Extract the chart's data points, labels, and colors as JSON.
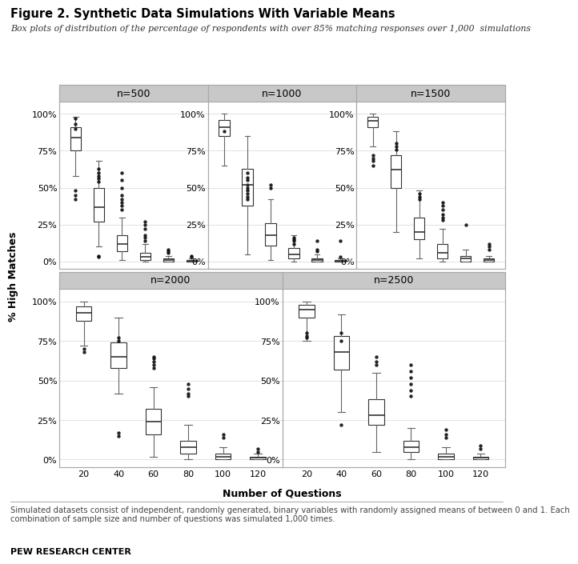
{
  "title": "Figure 2. Synthetic Data Simulations With Variable Means",
  "subtitle": "Box plots of distribution of the percentage of respondents with over 85% matching responses over 1,000  simulations",
  "footnote": "Simulated datasets consist of independent, randomly generated, binary variables with randomly assigned means of between 0 and 1. Each\ncombination of sample size and number of questions was simulated 1,000 times.",
  "footer_label": "PEW RESEARCH CENTER",
  "ylabel": "% High Matches",
  "xlabel": "Number of Questions",
  "panels": [
    "n=500",
    "n=1000",
    "n=1500",
    "n=2000",
    "n=2500"
  ],
  "questions": [
    20,
    40,
    60,
    80,
    100,
    120
  ],
  "yticks": [
    0,
    25,
    50,
    75,
    100
  ],
  "ytick_labels": [
    "0%",
    "25%",
    "50%",
    "75%",
    "100%"
  ],
  "box_data": {
    "n=500": {
      "20": {
        "q1": 75,
        "median": 84,
        "q3": 91,
        "whislo": 58,
        "whishi": 98,
        "fliers": [
          97,
          93,
          90,
          48,
          45,
          42
        ]
      },
      "40": {
        "q1": 27,
        "median": 37,
        "q3": 50,
        "whislo": 10,
        "whishi": 68,
        "fliers": [
          4,
          3,
          63,
          60,
          58,
          56,
          54
        ]
      },
      "60": {
        "q1": 7,
        "median": 12,
        "q3": 18,
        "whislo": 1,
        "whishi": 30,
        "fliers": [
          35,
          38,
          40,
          42,
          45,
          50,
          55,
          60
        ]
      },
      "80": {
        "q1": 1,
        "median": 3,
        "q3": 6,
        "whislo": 0,
        "whishi": 12,
        "fliers": [
          14,
          16,
          18,
          22,
          25,
          27
        ]
      },
      "100": {
        "q1": 0,
        "median": 1,
        "q3": 2,
        "whislo": 0,
        "whishi": 4,
        "fliers": [
          6,
          7,
          8
        ]
      },
      "120": {
        "q1": 0,
        "median": 0,
        "q3": 1,
        "whislo": 0,
        "whishi": 2,
        "fliers": [
          3,
          4
        ]
      }
    },
    "n=1000": {
      "20": {
        "q1": 85,
        "median": 91,
        "q3": 96,
        "whislo": 65,
        "whishi": 100,
        "fliers": [
          88
        ]
      },
      "40": {
        "q1": 38,
        "median": 52,
        "q3": 63,
        "whislo": 5,
        "whishi": 85,
        "fliers": [
          60,
          57,
          55,
          52,
          50,
          48,
          46,
          44,
          42
        ]
      },
      "60": {
        "q1": 11,
        "median": 18,
        "q3": 26,
        "whislo": 1,
        "whishi": 42,
        "fliers": [
          50,
          52
        ]
      },
      "80": {
        "q1": 2,
        "median": 5,
        "q3": 9,
        "whislo": 0,
        "whishi": 18,
        "fliers": [
          12,
          14,
          15,
          16
        ]
      },
      "100": {
        "q1": 0,
        "median": 1,
        "q3": 2,
        "whislo": 0,
        "whishi": 5,
        "fliers": [
          7,
          8,
          14
        ]
      },
      "120": {
        "q1": 0,
        "median": 0,
        "q3": 1,
        "whislo": 0,
        "whishi": 2,
        "fliers": [
          3,
          14
        ]
      }
    },
    "n=1500": {
      "20": {
        "q1": 91,
        "median": 95,
        "q3": 98,
        "whislo": 78,
        "whishi": 100,
        "fliers": [
          72,
          70,
          68,
          65
        ]
      },
      "40": {
        "q1": 50,
        "median": 62,
        "q3": 72,
        "whislo": 20,
        "whishi": 88,
        "fliers": [
          76,
          78,
          80
        ]
      },
      "60": {
        "q1": 15,
        "median": 20,
        "q3": 30,
        "whislo": 2,
        "whishi": 48,
        "fliers": [
          42,
          44,
          46
        ]
      },
      "80": {
        "q1": 2,
        "median": 6,
        "q3": 12,
        "whislo": 0,
        "whishi": 22,
        "fliers": [
          28,
          30,
          32,
          35,
          38,
          40
        ]
      },
      "100": {
        "q1": 0,
        "median": 2,
        "q3": 4,
        "whislo": 0,
        "whishi": 8,
        "fliers": [
          25
        ]
      },
      "120": {
        "q1": 0,
        "median": 1,
        "q3": 2,
        "whislo": 0,
        "whishi": 4,
        "fliers": [
          8,
          10,
          12
        ]
      }
    },
    "n=2000": {
      "20": {
        "q1": 88,
        "median": 93,
        "q3": 97,
        "whislo": 72,
        "whishi": 100,
        "fliers": [
          68,
          70
        ]
      },
      "40": {
        "q1": 58,
        "median": 65,
        "q3": 74,
        "whislo": 42,
        "whishi": 90,
        "fliers": [
          15,
          17,
          75,
          77
        ]
      },
      "60": {
        "q1": 16,
        "median": 24,
        "q3": 32,
        "whislo": 2,
        "whishi": 46,
        "fliers": [
          58,
          60,
          62,
          64,
          65
        ]
      },
      "80": {
        "q1": 4,
        "median": 8,
        "q3": 12,
        "whislo": 0,
        "whishi": 22,
        "fliers": [
          40,
          42,
          45,
          48
        ]
      },
      "100": {
        "q1": 0,
        "median": 2,
        "q3": 4,
        "whislo": 0,
        "whishi": 8,
        "fliers": [
          14,
          16
        ]
      },
      "120": {
        "q1": 0,
        "median": 1,
        "q3": 2,
        "whislo": 0,
        "whishi": 4,
        "fliers": [
          5,
          7
        ]
      }
    },
    "n=2500": {
      "20": {
        "q1": 90,
        "median": 95,
        "q3": 98,
        "whislo": 75,
        "whishi": 100,
        "fliers": [
          77,
          78,
          80
        ]
      },
      "40": {
        "q1": 57,
        "median": 68,
        "q3": 78,
        "whislo": 30,
        "whishi": 92,
        "fliers": [
          22,
          75,
          80
        ]
      },
      "60": {
        "q1": 22,
        "median": 28,
        "q3": 38,
        "whislo": 5,
        "whishi": 55,
        "fliers": [
          60,
          62,
          65
        ]
      },
      "80": {
        "q1": 5,
        "median": 8,
        "q3": 12,
        "whislo": 0,
        "whishi": 20,
        "fliers": [
          40,
          44,
          48,
          52,
          56,
          60
        ]
      },
      "100": {
        "q1": 0,
        "median": 2,
        "q3": 4,
        "whislo": 0,
        "whishi": 8,
        "fliers": [
          14,
          16,
          19
        ]
      },
      "120": {
        "q1": 0,
        "median": 1,
        "q3": 2,
        "whislo": 0,
        "whishi": 4,
        "fliers": [
          7,
          9
        ]
      }
    }
  },
  "panel_bg": "#c8c8c8",
  "box_facecolor": "white",
  "box_edgecolor": "#333333",
  "whisker_color": "#666666",
  "median_color": "#333333",
  "flier_color": "#111111",
  "grid_color": "#dddddd",
  "plot_bg": "white",
  "title_color": "black",
  "subtitle_color": "#333333",
  "footnote_color": "#444444",
  "border_color": "#aaaaaa"
}
